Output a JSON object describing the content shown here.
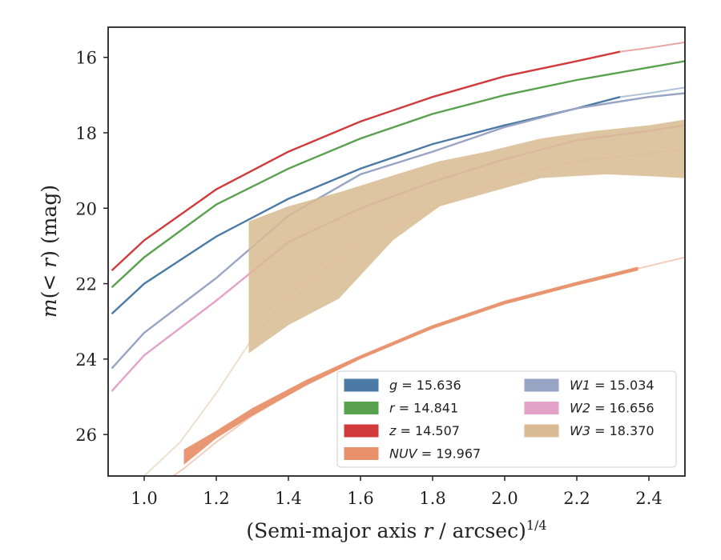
{
  "chart_data": {
    "type": "line",
    "xlabel": "(Semi-major axis r / arcsec)^1/4",
    "ylabel": "m(< r) (mag)",
    "xlim": [
      0.9,
      2.5
    ],
    "ylim": [
      27.1,
      15.2
    ],
    "y_inverted": true,
    "x_ticks": [
      "1.0",
      "1.2",
      "1.4",
      "1.6",
      "1.8",
      "2.0",
      "2.2",
      "2.4"
    ],
    "y_ticks": [
      "16",
      "18",
      "20",
      "22",
      "24",
      "26"
    ],
    "grid": false,
    "legend_position": "lower-right",
    "legend_columns": 2,
    "series": [
      {
        "key": "g",
        "name": "g = 15.636",
        "color": "#4c7aa6",
        "band": false,
        "main": [
          [
            0.91,
            22.8
          ],
          [
            1.0,
            22.0
          ],
          [
            1.2,
            20.75
          ],
          [
            1.4,
            19.75
          ],
          [
            1.6,
            18.95
          ],
          [
            1.8,
            18.3
          ],
          [
            2.0,
            17.8
          ],
          [
            2.2,
            17.35
          ],
          [
            2.32,
            17.05
          ]
        ],
        "extension": [
          [
            2.32,
            17.05
          ],
          [
            2.4,
            16.95
          ],
          [
            2.5,
            16.8
          ]
        ]
      },
      {
        "key": "r",
        "name": "r = 14.841",
        "color": "#59a14f",
        "band": false,
        "main": [
          [
            0.91,
            22.1
          ],
          [
            1.0,
            21.3
          ],
          [
            1.2,
            19.9
          ],
          [
            1.4,
            18.95
          ],
          [
            1.6,
            18.15
          ],
          [
            1.8,
            17.5
          ],
          [
            2.0,
            17.0
          ],
          [
            2.2,
            16.6
          ],
          [
            2.5,
            16.1
          ]
        ],
        "extension": []
      },
      {
        "key": "z",
        "name": "z = 14.507",
        "color": "#d03a3a",
        "band": false,
        "main": [
          [
            0.91,
            21.65
          ],
          [
            1.0,
            20.85
          ],
          [
            1.2,
            19.5
          ],
          [
            1.4,
            18.5
          ],
          [
            1.6,
            17.7
          ],
          [
            1.8,
            17.05
          ],
          [
            2.0,
            16.5
          ],
          [
            2.2,
            16.1
          ],
          [
            2.32,
            15.85
          ]
        ],
        "extension": [
          [
            2.32,
            15.85
          ],
          [
            2.4,
            15.75
          ],
          [
            2.5,
            15.6
          ]
        ]
      },
      {
        "key": "NUV",
        "name": "NUV = 19.967",
        "color": "#e8906a",
        "band": true,
        "upper": [
          [
            1.11,
            26.4
          ],
          [
            1.2,
            25.9
          ],
          [
            1.3,
            25.3
          ],
          [
            1.45,
            24.55
          ],
          [
            1.6,
            23.9
          ],
          [
            1.8,
            23.1
          ],
          [
            2.0,
            22.45
          ],
          [
            2.2,
            21.95
          ],
          [
            2.37,
            21.55
          ]
        ],
        "lower": [
          [
            1.11,
            26.8
          ],
          [
            1.2,
            26.1
          ],
          [
            1.3,
            25.5
          ],
          [
            1.45,
            24.7
          ],
          [
            1.6,
            24.0
          ],
          [
            1.8,
            23.2
          ],
          [
            2.0,
            22.55
          ],
          [
            2.2,
            22.05
          ],
          [
            2.37,
            21.65
          ]
        ],
        "extension": [
          [
            1.05,
            27.3
          ],
          [
            1.11,
            26.9
          ],
          [
            1.2,
            26.2
          ],
          [
            1.3,
            25.5
          ],
          [
            1.45,
            24.65
          ],
          [
            1.6,
            23.95
          ],
          [
            1.8,
            23.15
          ],
          [
            2.0,
            22.5
          ],
          [
            2.2,
            22.0
          ],
          [
            2.37,
            21.6
          ],
          [
            2.5,
            21.3
          ]
        ]
      },
      {
        "key": "W1",
        "name": "W1 = 15.034",
        "color": "#98a4c4",
        "band": false,
        "main": [
          [
            0.91,
            24.25
          ],
          [
            1.0,
            23.3
          ],
          [
            1.2,
            21.85
          ],
          [
            1.4,
            20.2
          ],
          [
            1.6,
            19.1
          ],
          [
            1.8,
            18.5
          ],
          [
            2.0,
            17.85
          ],
          [
            2.2,
            17.35
          ],
          [
            2.4,
            17.05
          ],
          [
            2.5,
            16.95
          ]
        ],
        "extension": []
      },
      {
        "key": "W2",
        "name": "W2 = 16.656",
        "color": "#e3a2c8",
        "band": false,
        "main": [
          [
            0.91,
            24.85
          ],
          [
            1.0,
            23.9
          ],
          [
            1.2,
            22.45
          ],
          [
            1.4,
            20.9
          ],
          [
            1.6,
            20.0
          ],
          [
            1.8,
            19.3
          ],
          [
            2.0,
            18.7
          ],
          [
            2.2,
            18.2
          ],
          [
            2.4,
            17.95
          ],
          [
            2.5,
            17.8
          ]
        ],
        "extension": []
      },
      {
        "key": "W3",
        "name": "W3 = 18.370",
        "color": "#d8bb92",
        "band": true,
        "upper": [
          [
            1.29,
            20.35
          ],
          [
            1.4,
            19.95
          ],
          [
            1.55,
            19.55
          ],
          [
            1.7,
            19.1
          ],
          [
            1.82,
            18.75
          ],
          [
            1.95,
            18.5
          ],
          [
            2.1,
            18.15
          ],
          [
            2.25,
            17.95
          ],
          [
            2.4,
            17.8
          ],
          [
            2.5,
            17.65
          ]
        ],
        "lower": [
          [
            1.29,
            23.85
          ],
          [
            1.4,
            23.1
          ],
          [
            1.54,
            22.4
          ],
          [
            1.69,
            20.85
          ],
          [
            1.82,
            19.95
          ],
          [
            1.95,
            19.6
          ],
          [
            2.1,
            19.2
          ],
          [
            2.28,
            19.1
          ],
          [
            2.4,
            19.15
          ],
          [
            2.5,
            19.2
          ]
        ],
        "extension": [
          [
            1.0,
            27.1
          ],
          [
            1.1,
            26.2
          ],
          [
            1.2,
            24.9
          ],
          [
            1.29,
            23.6
          ],
          [
            1.4,
            22.3
          ],
          [
            1.6,
            20.9
          ],
          [
            1.8,
            20.0
          ],
          [
            2.0,
            19.2
          ],
          [
            2.2,
            18.75
          ],
          [
            2.5,
            18.45
          ]
        ]
      }
    ]
  }
}
